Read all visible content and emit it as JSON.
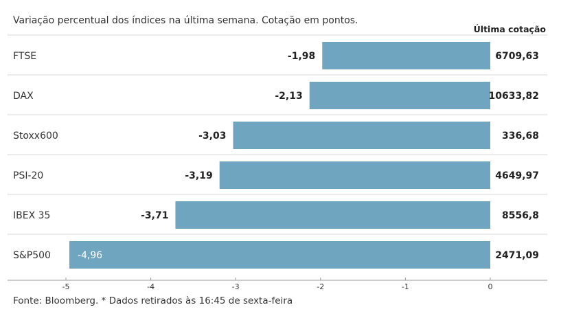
{
  "chart_data": {
    "type": "bar",
    "orientation": "horizontal",
    "title": "Variação percentual dos índices na última semana. Cotação em pontos.",
    "column_header": "Última cotação",
    "categories": [
      "FTSE",
      "DAX",
      "Stoxx600",
      "PSI-20",
      "IBEX 35",
      "S&P500"
    ],
    "values": [
      -1.98,
      -2.13,
      -3.03,
      -3.19,
      -3.71,
      -4.96
    ],
    "value_labels": [
      "-1,98",
      "-2,13",
      "-3,03",
      "-3,19",
      "-3,71",
      "-4,96"
    ],
    "last_quotes": [
      "6709,63",
      "10633,82",
      "336,68",
      "4649,97",
      "8556,8",
      "2471,09"
    ],
    "xlim": [
      -5,
      0
    ],
    "xticks": [
      -5,
      -4,
      -3,
      -2,
      -1,
      0
    ],
    "xtick_labels": [
      "-5",
      "-4",
      "-3",
      "-2",
      "-1",
      "0"
    ],
    "grid": false,
    "colors": {
      "bar": "#6fa5be",
      "separator": "#d9d9d9",
      "axis": "#999999"
    },
    "footer": "Fonte: Bloomberg.  * Dados retirados às 16:45 de sexta-feira"
  }
}
